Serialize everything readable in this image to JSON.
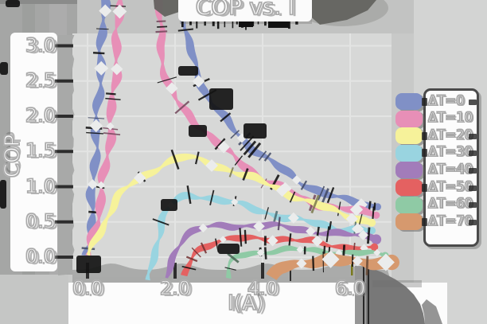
{
  "title": "COP vs. I",
  "axes": {
    "x_label": "I(A)",
    "y_label": "COP",
    "x_tick_labels": [
      "0.0",
      "2.0",
      "4.0",
      "6.0"
    ],
    "y_tick_labels": [
      "0.0",
      "0.5",
      "1.0",
      "1.5",
      "2.0",
      "2.5",
      "3.0"
    ]
  },
  "legend": {
    "items": [
      {
        "label": "ΔT=0",
        "color": "#8090c6"
      },
      {
        "label": "ΔT=10",
        "color": "#e78fb7"
      },
      {
        "label": "ΔT=20",
        "color": "#f6f29a"
      },
      {
        "label": "ΔT=30",
        "color": "#99d4e0"
      },
      {
        "label": "ΔT=40",
        "color": "#a27cba"
      },
      {
        "label": "ΔT=50",
        "color": "#e46161"
      },
      {
        "label": "ΔT=60",
        "color": "#8fcaa5"
      },
      {
        "label": "ΔT=70",
        "color": "#d6996e"
      }
    ]
  },
  "chart_data": {
    "type": "line",
    "title": "COP vs. I",
    "xlabel": "I(A)",
    "ylabel": "COP",
    "xlim": [
      -0.4,
      6.95
    ],
    "ylim": [
      -0.28,
      3.2
    ],
    "x_ticks": [
      0,
      2,
      4,
      6
    ],
    "y_ticks": [
      0,
      0.5,
      1,
      1.5,
      2,
      2.5,
      3
    ],
    "grid": true,
    "legend_position": "outside right",
    "style_note": "hand-drawn sketch style: thick wavy bands, black noise dashes, white diamond markers, outlined white labels on white strips",
    "series": [
      {
        "name": "ΔT=0",
        "color": "#8090c6",
        "peak_offscale": true,
        "segments": [
          [
            [
              0.02,
              0.02
            ],
            [
              0.08,
              0.5
            ],
            [
              0.13,
              1.0
            ],
            [
              0.18,
              1.55
            ],
            [
              0.24,
              2.15
            ],
            [
              0.3,
              2.75
            ],
            [
              0.35,
              3.3
            ],
            [
              0.38,
              3.7
            ]
          ],
          [
            [
              2.22,
              3.7
            ],
            [
              2.25,
              3.3
            ],
            [
              2.32,
              3.0
            ],
            [
              2.45,
              2.72
            ],
            [
              2.62,
              2.45
            ],
            [
              2.82,
              2.22
            ],
            [
              3.05,
              2.02
            ],
            [
              3.3,
              1.84
            ],
            [
              3.65,
              1.62
            ],
            [
              4.0,
              1.44
            ],
            [
              4.35,
              1.28
            ],
            [
              4.7,
              1.14
            ],
            [
              5.05,
              1.01
            ],
            [
              5.4,
              0.91
            ],
            [
              5.75,
              0.83
            ],
            [
              6.1,
              0.78
            ],
            [
              6.45,
              0.74
            ],
            [
              6.63,
              0.73
            ]
          ]
        ]
      },
      {
        "name": "ΔT=10",
        "color": "#e78fb7",
        "peak_offscale": true,
        "segments": [
          [
            [
              0.03,
              0.02
            ],
            [
              0.2,
              0.5
            ],
            [
              0.33,
              0.95
            ],
            [
              0.45,
              1.45
            ],
            [
              0.55,
              2.0
            ],
            [
              0.63,
              2.6
            ],
            [
              0.69,
              3.2
            ],
            [
              0.73,
              3.7
            ]
          ],
          [
            [
              1.63,
              3.7
            ],
            [
              1.66,
              3.2
            ],
            [
              1.71,
              2.85
            ],
            [
              1.8,
              2.55
            ],
            [
              1.95,
              2.3
            ],
            [
              2.15,
              2.12
            ],
            [
              2.4,
              1.97
            ],
            [
              2.7,
              1.78
            ],
            [
              3.05,
              1.57
            ],
            [
              3.45,
              1.37
            ],
            [
              3.85,
              1.18
            ],
            [
              4.25,
              1.03
            ],
            [
              4.65,
              0.91
            ],
            [
              5.05,
              0.81
            ],
            [
              5.45,
              0.73
            ],
            [
              5.85,
              0.68
            ],
            [
              6.25,
              0.64
            ],
            [
              6.6,
              0.62
            ]
          ]
        ]
      },
      {
        "name": "ΔT=20",
        "color": "#f6f29a",
        "segments": [
          [
            [
              0.04,
              0.02
            ],
            [
              0.3,
              0.38
            ],
            [
              0.62,
              0.78
            ],
            [
              0.95,
              1.0
            ],
            [
              1.25,
              1.13
            ],
            [
              1.55,
              1.26
            ],
            [
              1.85,
              1.35
            ],
            [
              2.15,
              1.41
            ],
            [
              2.45,
              1.39
            ],
            [
              2.8,
              1.33
            ],
            [
              3.2,
              1.25
            ],
            [
              3.6,
              1.16
            ],
            [
              4.0,
              1.06
            ],
            [
              4.4,
              0.96
            ],
            [
              4.8,
              0.85
            ],
            [
              5.2,
              0.75
            ],
            [
              5.6,
              0.66
            ],
            [
              6.0,
              0.58
            ],
            [
              6.5,
              0.5
            ]
          ]
        ]
      },
      {
        "name": "ΔT=30",
        "color": "#99d4e0",
        "segments": [
          [
            [
              1.42,
              -0.33
            ],
            [
              1.5,
              -0.05
            ],
            [
              1.58,
              0.22
            ],
            [
              1.68,
              0.46
            ],
            [
              1.8,
              0.63
            ],
            [
              1.95,
              0.75
            ],
            [
              2.12,
              0.83
            ],
            [
              2.32,
              0.88
            ],
            [
              2.58,
              0.87
            ],
            [
              2.95,
              0.82
            ],
            [
              3.35,
              0.76
            ],
            [
              3.8,
              0.69
            ],
            [
              4.25,
              0.61
            ],
            [
              4.7,
              0.54
            ],
            [
              5.15,
              0.48
            ],
            [
              5.6,
              0.43
            ],
            [
              6.05,
              0.4
            ],
            [
              6.5,
              0.37
            ]
          ]
        ]
      },
      {
        "name": "ΔT=40",
        "color": "#a27cba",
        "segments": [
          [
            [
              1.84,
              -0.3
            ],
            [
              1.93,
              -0.03
            ],
            [
              2.05,
              0.17
            ],
            [
              2.25,
              0.3
            ],
            [
              2.55,
              0.39
            ],
            [
              2.9,
              0.43
            ],
            [
              3.3,
              0.45
            ],
            [
              3.75,
              0.45
            ],
            [
              4.2,
              0.44
            ],
            [
              4.65,
              0.41
            ],
            [
              5.1,
              0.38
            ],
            [
              5.55,
              0.34
            ],
            [
              6.0,
              0.31
            ],
            [
              6.6,
              0.28
            ]
          ]
        ]
      },
      {
        "name": "ΔT=50",
        "color": "#e46161",
        "segments": [
          [
            [
              2.26,
              -0.27
            ],
            [
              2.36,
              -0.02
            ],
            [
              2.5,
              0.1
            ],
            [
              2.75,
              0.18
            ],
            [
              3.1,
              0.23
            ],
            [
              3.5,
              0.26
            ],
            [
              3.95,
              0.27
            ],
            [
              4.4,
              0.26
            ],
            [
              4.85,
              0.23
            ],
            [
              5.3,
              0.2
            ],
            [
              5.75,
              0.16
            ],
            [
              6.2,
              0.13
            ],
            [
              6.55,
              0.11
            ]
          ]
        ]
      },
      {
        "name": "ΔT=60",
        "color": "#8fcaa5",
        "segments": [
          [
            [
              3.22,
              -0.3
            ],
            [
              3.32,
              -0.06
            ],
            [
              3.5,
              0.03
            ],
            [
              3.85,
              0.07
            ],
            [
              4.3,
              0.09
            ],
            [
              4.8,
              0.1
            ],
            [
              5.3,
              0.09
            ],
            [
              5.8,
              0.07
            ],
            [
              6.3,
              0.05
            ],
            [
              6.8,
              0.03
            ]
          ]
        ]
      },
      {
        "name": "ΔT=70",
        "color": "#d6996e",
        "segments": [
          [
            [
              4.25,
              -0.3
            ],
            [
              4.4,
              -0.16
            ],
            [
              4.65,
              -0.1
            ],
            [
              5.0,
              -0.07
            ],
            [
              5.5,
              -0.06
            ],
            [
              6.0,
              -0.06
            ],
            [
              6.5,
              -0.07
            ],
            [
              6.95,
              -0.08
            ]
          ]
        ]
      }
    ]
  }
}
